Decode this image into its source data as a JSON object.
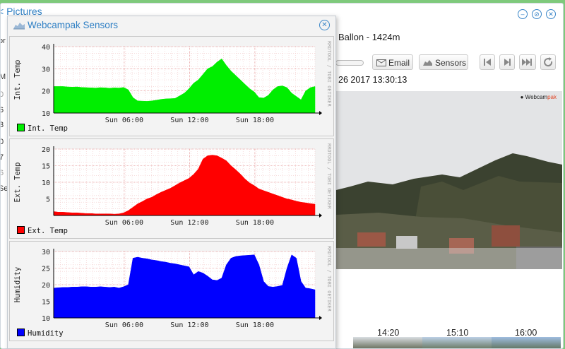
{
  "background_window": {
    "title": "< Pictures",
    "subtitle": "Ballon - 1424m",
    "datetime": "26 2017 13:30:13",
    "buttons": {
      "email": "Email",
      "sensors": "Sensors"
    },
    "photo_logo_a": "Webcam",
    "photo_logo_b": "pak",
    "thumb_times": [
      "14:20",
      "15:10",
      "16:00"
    ],
    "left_fragments": [
      "M",
      "0",
      "6",
      "3",
      "0",
      "7",
      "6",
      "Se",
      "or"
    ]
  },
  "sensors_window": {
    "title": "Webcampak Sensors",
    "side_text": "RRDTOOL / TOBI OETIKER",
    "x_ticks": [
      "Sun 06:00",
      "Sun 12:00",
      "Sun 18:00"
    ],
    "charts": [
      {
        "ylabel": "Int. Temp",
        "legend": "Int. Temp",
        "color": "#00ee00",
        "ylim": [
          10,
          40
        ],
        "yticks": [
          "40",
          "30",
          "20",
          "10"
        ]
      },
      {
        "ylabel": "Ext. Temp",
        "legend": "Ext. Temp",
        "color": "#ff0000",
        "ylim": [
          0,
          20
        ],
        "yticks": [
          "20",
          "15",
          "10",
          "5"
        ]
      },
      {
        "ylabel": "Humidity",
        "legend": "Humidity",
        "color": "#0000ff",
        "ylim": [
          10,
          30
        ],
        "yticks": [
          "30",
          "25",
          "20",
          "15",
          "10"
        ]
      }
    ]
  },
  "chart_data": [
    {
      "type": "area",
      "title": "",
      "ylabel": "Int. Temp",
      "ylim": [
        10,
        40
      ],
      "x_ticks": [
        "Sun 06:00",
        "Sun 12:00",
        "Sun 18:00"
      ],
      "series": [
        {
          "name": "Int. Temp",
          "values": [
            22,
            22,
            22,
            21.8,
            21.7,
            21.8,
            21.6,
            21.5,
            21.4,
            21.3,
            21.5,
            21.4,
            21.2,
            21.4,
            21.3,
            21.6,
            20.5,
            17,
            15.5,
            15.4,
            15.3,
            15.5,
            15.8,
            16.2,
            16.4,
            16.5,
            16.6,
            17.8,
            19,
            21,
            23.5,
            25,
            27.5,
            30,
            31,
            33,
            34.5,
            31.5,
            29,
            27,
            25,
            23,
            21,
            19.5,
            17,
            16.8,
            18,
            20.5,
            22,
            22.3,
            21.5,
            19,
            17.5,
            16,
            20,
            21.5,
            22
          ]
        }
      ]
    },
    {
      "type": "area",
      "title": "",
      "ylabel": "Ext. Temp",
      "ylim": [
        0,
        20
      ],
      "x_ticks": [
        "Sun 06:00",
        "Sun 12:00",
        "Sun 18:00"
      ],
      "series": [
        {
          "name": "Ext. Temp",
          "values": [
            1.2,
            1,
            1,
            0.9,
            0.8,
            0.8,
            0.7,
            0.6,
            0.6,
            0.5,
            0.5,
            0.5,
            0.5,
            0.4,
            0.5,
            0.8,
            1.5,
            2.5,
            3.5,
            4.2,
            5,
            5.5,
            6.3,
            7,
            7.6,
            8.2,
            9,
            9.8,
            10.5,
            11.2,
            12.4,
            14,
            17,
            18,
            18.2,
            18,
            17.3,
            16.5,
            15,
            13.8,
            12.5,
            11,
            9.8,
            9,
            8,
            7.5,
            7,
            6.5,
            6,
            5.5,
            5,
            4.7,
            4.3,
            4,
            3.8,
            3.6,
            3.4
          ]
        }
      ]
    },
    {
      "type": "area",
      "title": "",
      "ylabel": "Humidity",
      "ylim": [
        10,
        30
      ],
      "x_ticks": [
        "Sun 06:00",
        "Sun 12:00",
        "Sun 18:00"
      ],
      "series": [
        {
          "name": "Humidity",
          "values": [
            19,
            19.1,
            19.2,
            19.2,
            19.3,
            19.3,
            19.4,
            19.4,
            19.3,
            19.3,
            19.4,
            19.3,
            19.2,
            19.3,
            19,
            19.4,
            20,
            28,
            28.3,
            28,
            27.8,
            27.5,
            27.3,
            27,
            26.8,
            26.5,
            26.3,
            26,
            25.7,
            25.4,
            23,
            24,
            23.5,
            22.6,
            21.5,
            21.3,
            22,
            26,
            28,
            28.5,
            28.7,
            28.8,
            28.9,
            29,
            26,
            21,
            19.5,
            19.3,
            19.5,
            19.8,
            25,
            29,
            28,
            21,
            19,
            18.8,
            18.5
          ]
        }
      ]
    }
  ]
}
